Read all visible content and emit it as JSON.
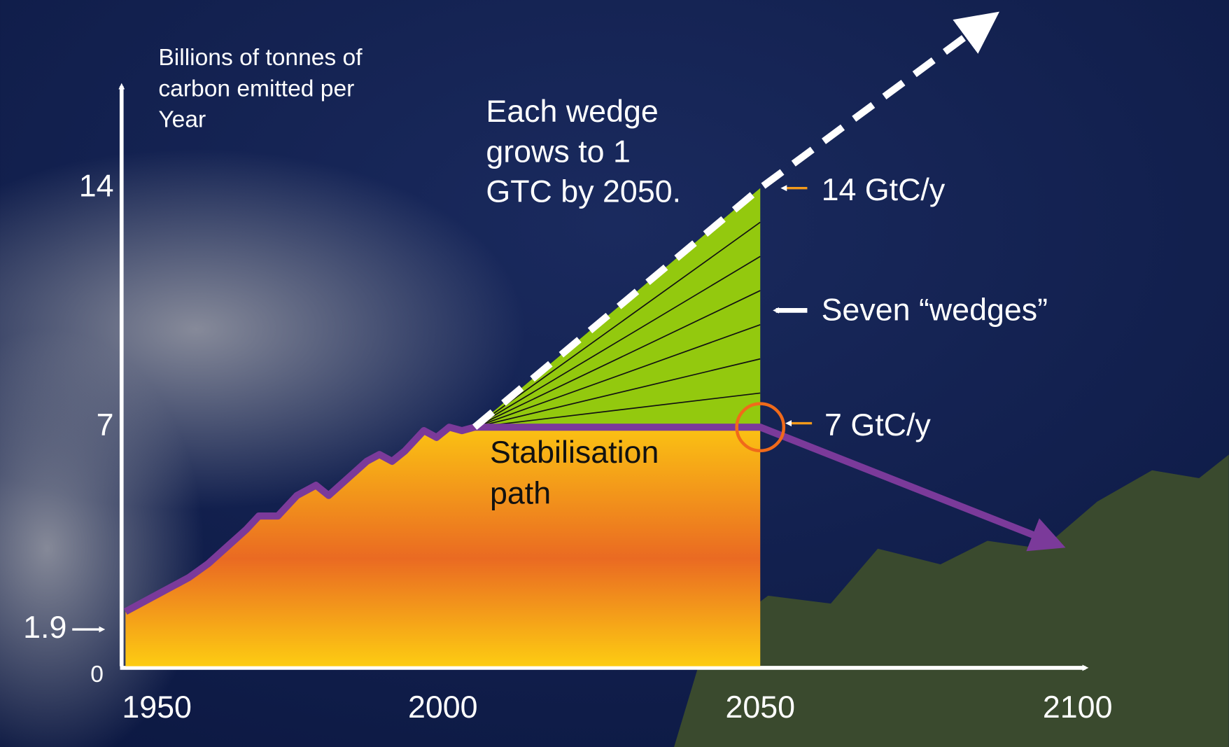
{
  "chart_data": {
    "type": "wedge",
    "y_axis_label": [
      "Billions of tonnes of",
      "carbon emitted per",
      "Year"
    ],
    "xlim": [
      1950,
      2100
    ],
    "ylim": [
      0,
      14
    ],
    "xticks": [
      1950,
      2000,
      2050,
      2100
    ],
    "yticks": [
      0,
      1.9,
      7,
      14
    ],
    "historical": {
      "x": [
        1950,
        1953,
        1956,
        1960,
        1963,
        1966,
        1969,
        1971,
        1974,
        1977,
        1980,
        1982,
        1985,
        1988,
        1990,
        1992,
        1994,
        1997,
        1999,
        2001,
        2003,
        2005
      ],
      "values": [
        1.6,
        1.9,
        2.2,
        2.6,
        3.0,
        3.5,
        4.0,
        4.4,
        4.4,
        5.0,
        5.3,
        5.0,
        5.5,
        6.0,
        6.2,
        6.0,
        6.3,
        6.9,
        6.7,
        7.0,
        6.9,
        7.0
      ],
      "color": "#7b3a9a"
    },
    "stabilisation": {
      "x": [
        2005,
        2050,
        2095
      ],
      "values": [
        7,
        7,
        3.7
      ],
      "color": "#7b3a9a"
    },
    "business_as_usual": {
      "x": [
        2005,
        2050,
        2085
      ],
      "values": [
        7,
        14,
        18.8
      ],
      "color": "#ffffff"
    },
    "wedge_start": {
      "x": 2005,
      "value": 7
    },
    "wedge_x": 2050,
    "wedge_edges": [
      7,
      8,
      9,
      10,
      11,
      12,
      13,
      14
    ],
    "wedge_color": "#93c90e",
    "annotations": {
      "wedge_note": [
        "Each wedge",
        "grows to 1",
        "GTC by 2050."
      ],
      "bau_level": "14 GtC/y",
      "wedges": "Seven “wedges”",
      "stab_level": "7 GtC/y",
      "stab_path": [
        "Stabilisation",
        "path"
      ]
    }
  }
}
